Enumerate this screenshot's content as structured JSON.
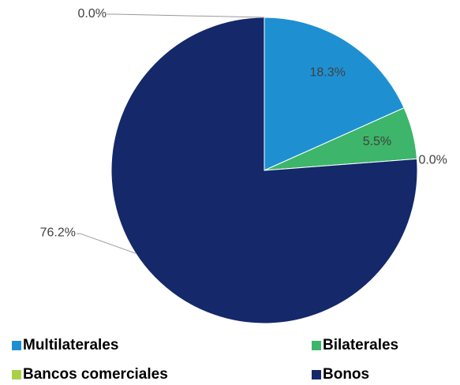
{
  "chart_data": {
    "type": "pie",
    "categories": [
      "Multilaterales",
      "Bilaterales",
      "Bancos comerciales",
      "Bonos",
      null
    ],
    "values": [
      18.3,
      5.5,
      0.0,
      76.2,
      0.0
    ],
    "value_labels": [
      "18.3%",
      "5.5%",
      "0.0%",
      "76.2%",
      "0.0%"
    ],
    "colors": [
      "#1e90d2",
      "#3db56a",
      "#a8d14a",
      "#14286a",
      "#9a9a9a"
    ]
  }
}
